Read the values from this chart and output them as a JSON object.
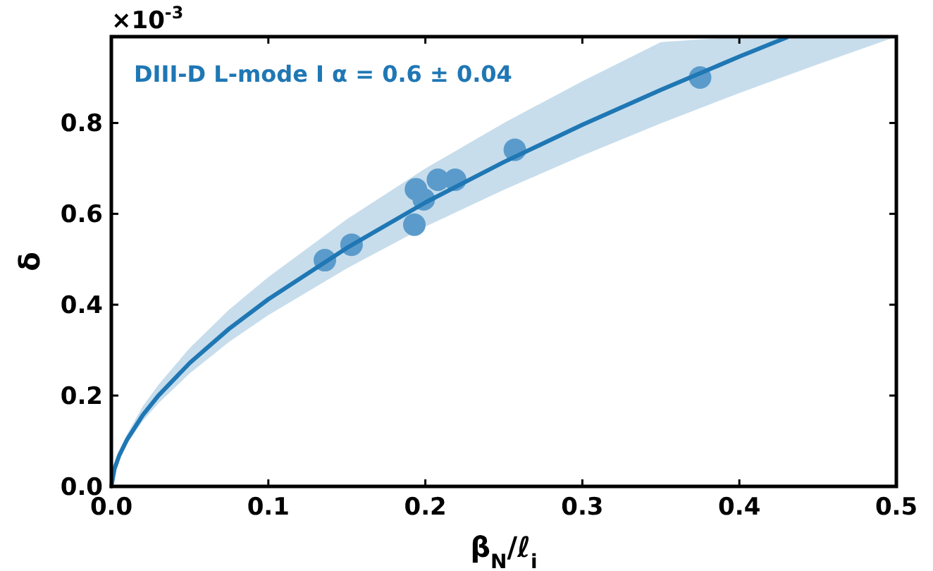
{
  "chart_data": {
    "type": "scatter",
    "xlabel": "β$_{N}$/ℓ$_{i}$",
    "ylabel": "δ",
    "xlim": [
      0,
      0.5
    ],
    "xticks": [
      {
        "value": 0,
        "label": "0.0"
      },
      0.1,
      0.2,
      0.3,
      0.4,
      0.5
    ],
    "ylim": [
      0,
      0.99
    ],
    "yticks": [
      {
        "value": 0,
        "label": "0.0"
      },
      0.2,
      0.4,
      0.6,
      0.8
    ],
    "grid": false,
    "annotations": [
      "×10$^{-3}$"
    ],
    "series": [
      {
        "marker": "circle",
        "color": "#5b9bcb",
        "x": [
          0.136,
          0.153,
          0.193,
          0.194,
          0.199,
          0.208,
          0.219,
          0.257,
          0.375
        ],
        "values": [
          0.498,
          0.532,
          0.576,
          0.654,
          0.632,
          0.675,
          0.675,
          0.741,
          0.9
        ]
      },
      {
        "type": "line",
        "marker": "none",
        "name": "DIII-D L-mode I α = 0.6 ± 0.04",
        "color": "#1f77b4",
        "x": [
          0,
          0.002,
          0.005,
          0.01,
          0.02,
          0.03,
          0.05,
          0.075,
          0.1,
          0.15,
          0.2,
          0.25,
          0.3,
          0.35,
          0.4,
          0.43,
          0.45,
          0.5
        ],
        "values": [
          0,
          0.039,
          0.068,
          0.103,
          0.157,
          0.2,
          0.272,
          0.347,
          0.412,
          0.525,
          0.625,
          0.714,
          0.796,
          0.873,
          0.946,
          0.988,
          null,
          null
        ],
        "lower": [
          0,
          0.036,
          0.062,
          0.094,
          0.144,
          0.183,
          0.249,
          0.318,
          0.377,
          0.48,
          0.572,
          0.653,
          0.728,
          0.799,
          0.866,
          0.904,
          0.929,
          0.99
        ],
        "upper": [
          0,
          0.044,
          0.076,
          0.115,
          0.176,
          0.224,
          0.305,
          0.389,
          0.461,
          0.588,
          0.7,
          0.8,
          0.892,
          0.978,
          0.99,
          0.99,
          0.99,
          0.99
        ]
      }
    ]
  }
}
